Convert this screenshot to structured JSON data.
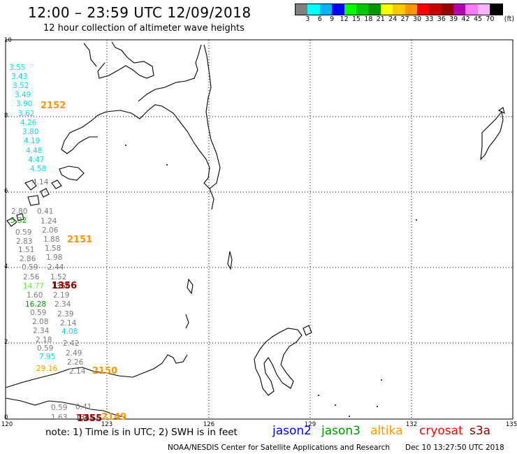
{
  "title": "12:00  –  23:59 UTC 12/09/2018",
  "subtitle": "12 hour collection of altimeter wave heights",
  "scale": {
    "labels": [
      "3",
      "6",
      "9",
      "12",
      "15",
      "18",
      "21",
      "24",
      "27",
      "30",
      "33",
      "36",
      "39",
      "42",
      "45",
      "70"
    ],
    "unit": "(ft)",
    "colors": [
      "#808080",
      "#00ffff",
      "#00b4ff",
      "#0000ff",
      "#00ff00",
      "#00c800",
      "#009600",
      "#ffff00",
      "#ffc800",
      "#ff9600",
      "#ff0000",
      "#c80000",
      "#960000",
      "#b400b4",
      "#ff78ff",
      "#ffb4ff",
      "#000000"
    ]
  },
  "axes": {
    "lat_labels": [
      "10",
      "8",
      "6",
      "4",
      "2",
      "0"
    ],
    "lon_labels": [
      "120",
      "123",
      "126",
      "129",
      "132",
      "135"
    ]
  },
  "map_labels": {
    "cyan": [
      "3.55",
      "3.43",
      "3.52",
      "3.49",
      "3.90",
      "3.62",
      "4.26",
      "3.80",
      "4.19",
      "4.48",
      "4.47",
      "4.58",
      "4.08",
      "7.95"
    ],
    "gray": [
      "4.14",
      "2.80",
      "0.41",
      "1.24",
      "0.59",
      "2.06",
      "2.83",
      "1.88",
      "1.51",
      "1.58",
      "2.86",
      "1.98",
      "0.59",
      "2.44",
      "2.56",
      "1.52",
      "1.60",
      "2.19",
      "2.34",
      "0.59",
      "2.39",
      "2.08",
      "2.14",
      "2.34",
      "2.18",
      "2.42",
      "0.59",
      "2.49",
      "2.26",
      "2.14",
      "0.59",
      "0.41",
      "1.63"
    ],
    "light_green": [
      "14.77"
    ],
    "dark_green": [
      "16.28",
      "5.32"
    ],
    "orange": [
      "29.16"
    ],
    "brown": [
      "1355",
      "1356"
    ]
  },
  "pass_ids": {
    "orange": [
      "2152",
      "2151",
      "2150",
      "2149"
    ],
    "brown": [
      "1356",
      "1355"
    ]
  },
  "note": "note:  1) Time is in UTC;  2) SWH is in feet",
  "satellites": [
    {
      "name": "jason2",
      "color": "#0000ff"
    },
    {
      "name": "jason3",
      "color": "#009600"
    },
    {
      "name": "altika",
      "color": "#ff9600"
    },
    {
      "name": "cryosat",
      "color": "#ff0000"
    },
    {
      "name": "s3a",
      "color": "#960000"
    }
  ],
  "footer": {
    "credit": "NOAA/NESDIS Center for Satellite Applications and Research",
    "timestamp": "Dec 10 13:27:50 UTC 2018"
  }
}
